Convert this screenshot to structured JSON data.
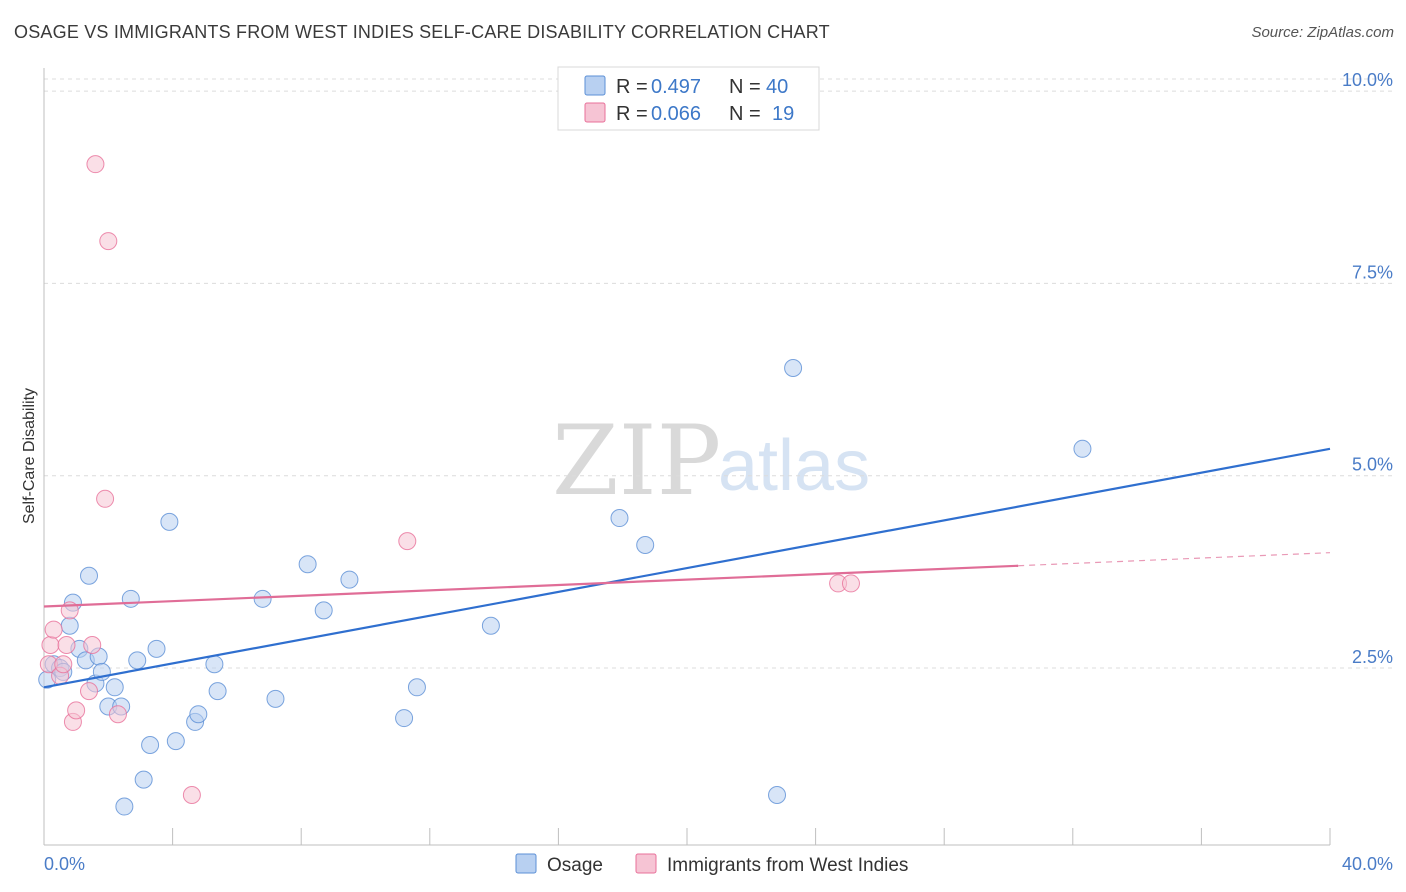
{
  "title": "OSAGE VS IMMIGRANTS FROM WEST INDIES SELF-CARE DISABILITY CORRELATION CHART",
  "source": "Source: ZipAtlas.com",
  "watermark": {
    "zip": "ZIP",
    "atlas": "atlas"
  },
  "colors": {
    "blue": "#5b8fd6",
    "blue_fill": "#b8d0f1",
    "pink": "#e8709a",
    "pink_fill": "#f6c4d4",
    "tick": "#4a7cc7",
    "grid": "#dcdcdc"
  },
  "legend_box": {
    "rows": [
      {
        "r_label": "R =",
        "r_value": "0.497",
        "n_label": "N =",
        "n_value": "40",
        "color": "blue"
      },
      {
        "r_label": "R =",
        "r_value": "0.066",
        "n_label": "N =",
        "n_value": "19",
        "color": "pink"
      }
    ]
  },
  "bottom_legend": [
    "Osage",
    "Immigrants from West Indies"
  ],
  "chart_data": {
    "type": "scatter",
    "title": "OSAGE VS IMMIGRANTS FROM WEST INDIES SELF-CARE DISABILITY CORRELATION CHART",
    "ylabel": "Self-Care Disability",
    "xlabel": "",
    "xlim": [
      0,
      40
    ],
    "ylim": [
      0.2,
      10.3
    ],
    "x_tick_labels": [
      "0.0%",
      "40.0%"
    ],
    "y_ticks": [
      2.5,
      5.0,
      7.5,
      10.0
    ],
    "y_tick_labels": [
      "2.5%",
      "5.0%",
      "7.5%",
      "10.0%"
    ],
    "grid": "horizontal dashed",
    "legend": "top-center",
    "series": [
      {
        "name": "Osage",
        "color": "blue",
        "points": [
          [
            0.1,
            2.35
          ],
          [
            0.3,
            2.55
          ],
          [
            0.5,
            2.5
          ],
          [
            0.6,
            2.45
          ],
          [
            0.8,
            3.05
          ],
          [
            0.9,
            3.35
          ],
          [
            1.1,
            2.75
          ],
          [
            1.3,
            2.6
          ],
          [
            1.4,
            3.7
          ],
          [
            1.6,
            2.3
          ],
          [
            1.7,
            2.65
          ],
          [
            1.8,
            2.45
          ],
          [
            2.0,
            2.0
          ],
          [
            2.2,
            2.25
          ],
          [
            2.4,
            2.0
          ],
          [
            2.5,
            0.7
          ],
          [
            2.7,
            3.4
          ],
          [
            2.9,
            2.6
          ],
          [
            3.1,
            1.05
          ],
          [
            3.3,
            1.5
          ],
          [
            3.5,
            2.75
          ],
          [
            3.9,
            4.4
          ],
          [
            4.1,
            1.55
          ],
          [
            4.7,
            1.8
          ],
          [
            4.8,
            1.9
          ],
          [
            5.3,
            2.55
          ],
          [
            5.4,
            2.2
          ],
          [
            6.8,
            3.4
          ],
          [
            7.2,
            2.1
          ],
          [
            8.2,
            3.85
          ],
          [
            8.7,
            3.25
          ],
          [
            9.5,
            3.65
          ],
          [
            11.2,
            1.85
          ],
          [
            11.6,
            2.25
          ],
          [
            13.9,
            3.05
          ],
          [
            17.9,
            4.45
          ],
          [
            18.7,
            4.1
          ],
          [
            22.8,
            0.85
          ],
          [
            23.3,
            6.4
          ],
          [
            32.3,
            5.35
          ]
        ],
        "trend": {
          "x": [
            0,
            40
          ],
          "y": [
            2.25,
            5.35
          ]
        }
      },
      {
        "name": "Immigrants from West Indies",
        "color": "pink",
        "points": [
          [
            0.15,
            2.55
          ],
          [
            0.2,
            2.8
          ],
          [
            0.3,
            3.0
          ],
          [
            0.5,
            2.4
          ],
          [
            0.6,
            2.55
          ],
          [
            0.7,
            2.8
          ],
          [
            0.8,
            3.25
          ],
          [
            0.9,
            1.8
          ],
          [
            1.0,
            1.95
          ],
          [
            1.4,
            2.2
          ],
          [
            1.5,
            2.8
          ],
          [
            1.6,
            9.05
          ],
          [
            1.9,
            4.7
          ],
          [
            2.0,
            8.05
          ],
          [
            2.3,
            1.9
          ],
          [
            4.6,
            0.85
          ],
          [
            11.3,
            4.15
          ],
          [
            24.7,
            3.6
          ],
          [
            25.1,
            3.6
          ]
        ],
        "trend": {
          "x": [
            0,
            30.3
          ],
          "y": [
            3.3,
            3.83
          ]
        },
        "trend_extension": {
          "x": [
            30.3,
            40
          ],
          "y": [
            3.83,
            4.0
          ]
        }
      }
    ]
  }
}
